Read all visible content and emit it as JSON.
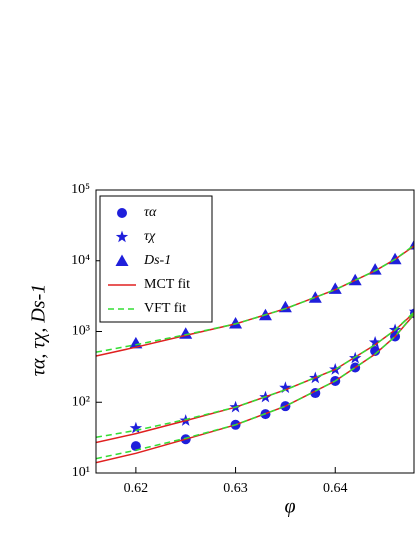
{
  "chart_data": {
    "type": "scatter",
    "xlabel": "φ",
    "ylabel": "τα, τχ, Ds-1",
    "xlim": [
      0.616,
      0.6479
    ],
    "xticks": [
      0.62,
      0.63,
      0.64
    ],
    "ylim": [
      10,
      100000
    ],
    "log_y": true,
    "yticks": [
      {
        "value": 10,
        "label": "10¹"
      },
      {
        "value": 100,
        "label": "10²"
      },
      {
        "value": 1000,
        "label": "10³"
      },
      {
        "value": 10000,
        "label": "10⁴"
      },
      {
        "value": 100000,
        "label": "10⁵"
      }
    ],
    "legend": "upper left",
    "series": [
      {
        "name": "τα",
        "color": "#1f1fdb",
        "marker": "circle",
        "x": [
          0.62,
          0.625,
          0.63,
          0.633,
          0.635,
          0.638,
          0.64,
          0.642,
          0.644,
          0.646,
          0.648
        ],
        "values": [
          24,
          30,
          48,
          68,
          88,
          135,
          200,
          310,
          530,
          850,
          1800
        ]
      },
      {
        "name": "τχ",
        "color": "#1f1fdb",
        "marker": "star",
        "x": [
          0.62,
          0.625,
          0.63,
          0.633,
          0.635,
          0.638,
          0.64,
          0.642,
          0.644,
          0.646,
          0.648
        ],
        "values": [
          43,
          55,
          85,
          118,
          160,
          220,
          290,
          420,
          700,
          1050,
          1900
        ]
      },
      {
        "name": "Ds-1",
        "color": "#1f1fdb",
        "marker": "triangle",
        "x": [
          0.62,
          0.625,
          0.63,
          0.633,
          0.635,
          0.638,
          0.64,
          0.642,
          0.644,
          0.646,
          0.648
        ],
        "values": [
          680,
          930,
          1300,
          1700,
          2200,
          3000,
          4000,
          5300,
          7500,
          10500,
          17000
        ]
      },
      {
        "name": "MCT fit",
        "color": "#e02020",
        "marker": "line",
        "x": [
          0.616,
          0.62,
          0.625,
          0.63,
          0.635,
          0.64,
          0.644,
          0.646,
          0.648
        ],
        "values": [
          450,
          600,
          880,
          1280,
          2100,
          3900,
          7200,
          10500,
          16500
        ]
      },
      {
        "name": "VFT fit",
        "color": "#33dd33",
        "marker": "dash",
        "x": [
          0.616,
          0.62,
          0.625,
          0.63,
          0.635,
          0.64,
          0.644,
          0.646,
          0.648
        ],
        "values": [
          510,
          650,
          900,
          1280,
          2100,
          3900,
          7200,
          10500,
          17000
        ]
      },
      {
        "name": "MCT fit",
        "color": "#e02020",
        "marker": "line",
        "x": [
          0.616,
          0.62,
          0.625,
          0.63,
          0.635,
          0.64,
          0.644,
          0.646,
          0.648
        ],
        "values": [
          27,
          36,
          55,
          85,
          150,
          290,
          650,
          1050,
          1900
        ]
      },
      {
        "name": "VFT fit",
        "color": "#33dd33",
        "marker": "dash",
        "x": [
          0.616,
          0.62,
          0.625,
          0.63,
          0.635,
          0.64,
          0.644,
          0.646,
          0.648
        ],
        "values": [
          32,
          40,
          57,
          85,
          150,
          290,
          650,
          1050,
          1950
        ]
      },
      {
        "name": "MCT fit",
        "color": "#e02020",
        "marker": "line",
        "x": [
          0.616,
          0.62,
          0.625,
          0.63,
          0.635,
          0.64,
          0.644,
          0.646,
          0.648
        ],
        "values": [
          14,
          19,
          30,
          48,
          88,
          200,
          480,
          850,
          1800
        ]
      },
      {
        "name": "VFT fit",
        "color": "#33dd33",
        "marker": "dash",
        "x": [
          0.616,
          0.62,
          0.625,
          0.63,
          0.635,
          0.64,
          0.644,
          0.646,
          0.648
        ],
        "values": [
          16,
          21,
          31,
          48,
          88,
          200,
          480,
          850,
          1850
        ]
      }
    ]
  }
}
